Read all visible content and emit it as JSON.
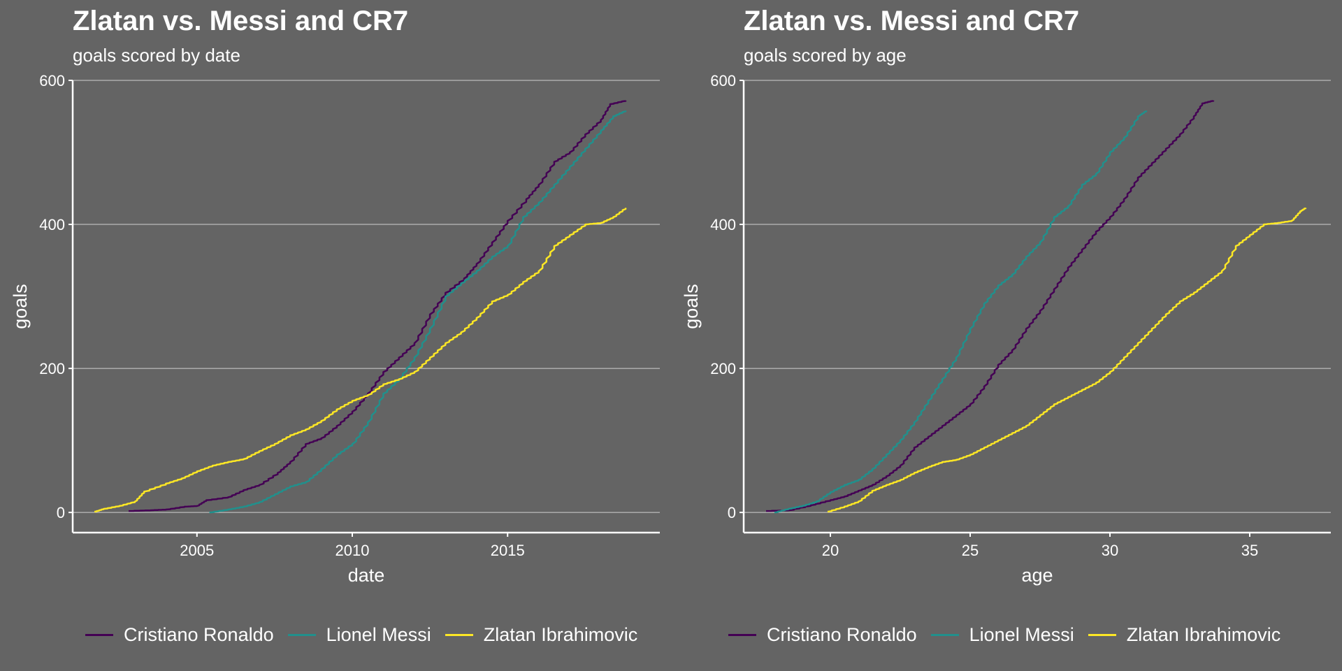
{
  "chart_data": [
    {
      "type": "line",
      "title": "Zlatan vs. Messi and CR7",
      "subtitle": "goals scored by date",
      "xlabel": "date",
      "ylabel": "goals",
      "xlim": [
        2001.0,
        2019.9
      ],
      "ylim": [
        -28,
        600
      ],
      "xticks": [
        2005,
        2010,
        2015
      ],
      "xtick_labels": [
        "2005",
        "2010",
        "2015"
      ],
      "yticks": [
        0,
        200,
        400,
        600
      ],
      "ytick_labels": [
        "0",
        "200",
        "400",
        "600"
      ],
      "grid": "horizontal",
      "legend_position": "bottom",
      "series": [
        {
          "name": "Cristiano Ronaldo",
          "color": "#440154",
          "points": [
            [
              2002.8,
              2
            ],
            [
              2003.5,
              3
            ],
            [
              2004.0,
              4
            ],
            [
              2004.6,
              8
            ],
            [
              2005.0,
              9
            ],
            [
              2005.3,
              17
            ],
            [
              2006.0,
              21
            ],
            [
              2006.5,
              31
            ],
            [
              2007.0,
              38
            ],
            [
              2007.6,
              55
            ],
            [
              2008.0,
              70
            ],
            [
              2008.5,
              95
            ],
            [
              2009.0,
              103
            ],
            [
              2009.5,
              120
            ],
            [
              2010.0,
              140
            ],
            [
              2010.5,
              165
            ],
            [
              2011.0,
              195
            ],
            [
              2011.5,
              215
            ],
            [
              2012.0,
              235
            ],
            [
              2012.5,
              275
            ],
            [
              2013.0,
              305
            ],
            [
              2013.6,
              325
            ],
            [
              2014.0,
              345
            ],
            [
              2014.5,
              375
            ],
            [
              2015.0,
              405
            ],
            [
              2015.6,
              435
            ],
            [
              2016.0,
              455
            ],
            [
              2016.5,
              487
            ],
            [
              2017.0,
              500
            ],
            [
              2017.5,
              525
            ],
            [
              2018.0,
              545
            ],
            [
              2018.3,
              567
            ],
            [
              2018.8,
              572
            ]
          ]
        },
        {
          "name": "Lionel Messi",
          "color": "#21908C",
          "points": [
            [
              2005.4,
              0
            ],
            [
              2006.0,
              4
            ],
            [
              2006.5,
              8
            ],
            [
              2007.0,
              14
            ],
            [
              2007.5,
              25
            ],
            [
              2008.0,
              36
            ],
            [
              2008.5,
              42
            ],
            [
              2009.0,
              60
            ],
            [
              2009.5,
              80
            ],
            [
              2010.0,
              95
            ],
            [
              2010.5,
              125
            ],
            [
              2011.0,
              165
            ],
            [
              2011.5,
              185
            ],
            [
              2012.0,
              215
            ],
            [
              2012.5,
              255
            ],
            [
              2013.0,
              300
            ],
            [
              2013.5,
              318
            ],
            [
              2014.0,
              335
            ],
            [
              2014.5,
              355
            ],
            [
              2015.0,
              370
            ],
            [
              2015.5,
              410
            ],
            [
              2016.0,
              430
            ],
            [
              2016.5,
              455
            ],
            [
              2017.0,
              480
            ],
            [
              2017.5,
              505
            ],
            [
              2018.0,
              530
            ],
            [
              2018.4,
              550
            ],
            [
              2018.8,
              558
            ]
          ]
        },
        {
          "name": "Zlatan Ibrahimovic",
          "color": "#FDE725",
          "points": [
            [
              2001.7,
              1
            ],
            [
              2002.0,
              5
            ],
            [
              2002.5,
              9
            ],
            [
              2003.0,
              15
            ],
            [
              2003.3,
              29
            ],
            [
              2004.0,
              40
            ],
            [
              2004.5,
              47
            ],
            [
              2005.0,
              57
            ],
            [
              2005.5,
              65
            ],
            [
              2006.0,
              70
            ],
            [
              2006.5,
              74
            ],
            [
              2007.0,
              85
            ],
            [
              2007.5,
              95
            ],
            [
              2008.0,
              107
            ],
            [
              2008.5,
              115
            ],
            [
              2009.0,
              127
            ],
            [
              2009.5,
              143
            ],
            [
              2010.0,
              155
            ],
            [
              2010.5,
              163
            ],
            [
              2011.0,
              178
            ],
            [
              2011.5,
              185
            ],
            [
              2012.0,
              195
            ],
            [
              2012.5,
              215
            ],
            [
              2013.0,
              235
            ],
            [
              2013.5,
              250
            ],
            [
              2014.0,
              270
            ],
            [
              2014.5,
              293
            ],
            [
              2015.0,
              302
            ],
            [
              2015.5,
              320
            ],
            [
              2016.0,
              335
            ],
            [
              2016.5,
              370
            ],
            [
              2017.0,
              385
            ],
            [
              2017.5,
              400
            ],
            [
              2018.0,
              402
            ],
            [
              2018.4,
              410
            ],
            [
              2018.8,
              423
            ]
          ]
        }
      ]
    },
    {
      "type": "line",
      "title": "Zlatan vs. Messi and CR7",
      "subtitle": "goals scored by age",
      "xlabel": "age",
      "ylabel": "goals",
      "xlim": [
        16.9,
        37.9
      ],
      "ylim": [
        -28,
        600
      ],
      "xticks": [
        20,
        25,
        30,
        35
      ],
      "xtick_labels": [
        "20",
        "25",
        "30",
        "35"
      ],
      "yticks": [
        0,
        200,
        400,
        600
      ],
      "ytick_labels": [
        "0",
        "200",
        "400",
        "600"
      ],
      "grid": "horizontal",
      "legend_position": "bottom",
      "series": [
        {
          "name": "Cristiano Ronaldo",
          "color": "#440154",
          "points": [
            [
              17.7,
              2
            ],
            [
              18.5,
              3
            ],
            [
              19.3,
              10
            ],
            [
              20.0,
              17
            ],
            [
              20.5,
              22
            ],
            [
              21.0,
              30
            ],
            [
              21.5,
              38
            ],
            [
              22.0,
              50
            ],
            [
              22.5,
              65
            ],
            [
              23.0,
              90
            ],
            [
              23.5,
              105
            ],
            [
              24.0,
              120
            ],
            [
              24.5,
              135
            ],
            [
              25.0,
              150
            ],
            [
              25.5,
              175
            ],
            [
              26.0,
              205
            ],
            [
              26.5,
              225
            ],
            [
              27.0,
              255
            ],
            [
              27.5,
              280
            ],
            [
              28.0,
              310
            ],
            [
              28.5,
              340
            ],
            [
              29.0,
              365
            ],
            [
              29.5,
              390
            ],
            [
              30.0,
              410
            ],
            [
              30.5,
              435
            ],
            [
              31.0,
              465
            ],
            [
              31.5,
              485
            ],
            [
              32.0,
              505
            ],
            [
              32.5,
              525
            ],
            [
              33.0,
              550
            ],
            [
              33.3,
              568
            ],
            [
              33.7,
              572
            ]
          ]
        },
        {
          "name": "Lionel Messi",
          "color": "#21908C",
          "points": [
            [
              18.0,
              0
            ],
            [
              18.5,
              5
            ],
            [
              19.0,
              9
            ],
            [
              19.5,
              15
            ],
            [
              20.0,
              28
            ],
            [
              20.5,
              38
            ],
            [
              21.0,
              45
            ],
            [
              21.5,
              60
            ],
            [
              22.0,
              80
            ],
            [
              22.5,
              100
            ],
            [
              23.0,
              125
            ],
            [
              23.5,
              155
            ],
            [
              24.0,
              185
            ],
            [
              24.5,
              215
            ],
            [
              25.0,
              255
            ],
            [
              25.5,
              290
            ],
            [
              26.0,
              315
            ],
            [
              26.5,
              330
            ],
            [
              27.0,
              355
            ],
            [
              27.5,
              375
            ],
            [
              28.0,
              410
            ],
            [
              28.5,
              425
            ],
            [
              29.0,
              455
            ],
            [
              29.5,
              470
            ],
            [
              30.0,
              500
            ],
            [
              30.5,
              520
            ],
            [
              31.0,
              550
            ],
            [
              31.3,
              558
            ]
          ]
        },
        {
          "name": "Zlatan Ibrahimovic",
          "color": "#FDE725",
          "points": [
            [
              19.9,
              1
            ],
            [
              20.5,
              8
            ],
            [
              21.0,
              15
            ],
            [
              21.5,
              30
            ],
            [
              22.0,
              38
            ],
            [
              22.5,
              45
            ],
            [
              23.0,
              55
            ],
            [
              23.5,
              63
            ],
            [
              24.0,
              70
            ],
            [
              24.5,
              73
            ],
            [
              25.0,
              80
            ],
            [
              25.5,
              90
            ],
            [
              26.0,
              100
            ],
            [
              26.5,
              110
            ],
            [
              27.0,
              120
            ],
            [
              27.5,
              135
            ],
            [
              28.0,
              150
            ],
            [
              28.5,
              160
            ],
            [
              29.0,
              170
            ],
            [
              29.5,
              180
            ],
            [
              30.0,
              195
            ],
            [
              30.5,
              215
            ],
            [
              31.0,
              235
            ],
            [
              31.5,
              255
            ],
            [
              32.0,
              275
            ],
            [
              32.5,
              293
            ],
            [
              33.0,
              305
            ],
            [
              33.5,
              320
            ],
            [
              34.0,
              335
            ],
            [
              34.5,
              370
            ],
            [
              35.0,
              385
            ],
            [
              35.5,
              400
            ],
            [
              36.0,
              402
            ],
            [
              36.5,
              405
            ],
            [
              36.8,
              418
            ],
            [
              37.0,
              423
            ]
          ]
        }
      ]
    }
  ]
}
